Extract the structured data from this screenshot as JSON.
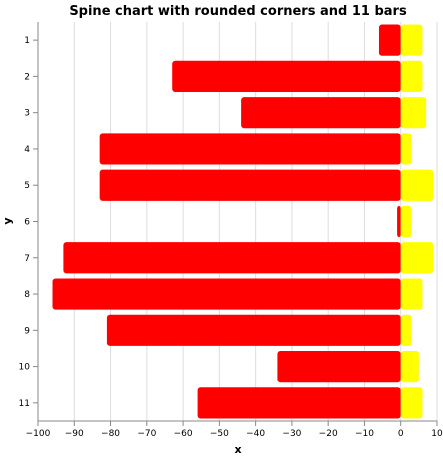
{
  "chart_data": {
    "type": "bar",
    "orientation": "horizontal",
    "title": "Spine chart with rounded corners and 11 bars",
    "xlabel": "x",
    "ylabel": "y",
    "xlim": [
      -100,
      10
    ],
    "x_ticks": [
      -100,
      -90,
      -80,
      -70,
      -60,
      -50,
      -40,
      -30,
      -20,
      -10,
      0,
      10
    ],
    "grid": true,
    "categories": [
      "1",
      "2",
      "3",
      "4",
      "5",
      "6",
      "7",
      "8",
      "9",
      "10",
      "11"
    ],
    "series": [
      {
        "color": "#ff0000",
        "values": [
          -6,
          -63,
          -44,
          -83,
          -83,
          -1,
          -93,
          -96,
          -81,
          -34,
          -56
        ]
      },
      {
        "color": "#ffff00",
        "values": [
          6,
          6,
          7,
          3,
          9,
          3,
          9,
          6,
          3,
          5,
          6
        ]
      }
    ]
  }
}
